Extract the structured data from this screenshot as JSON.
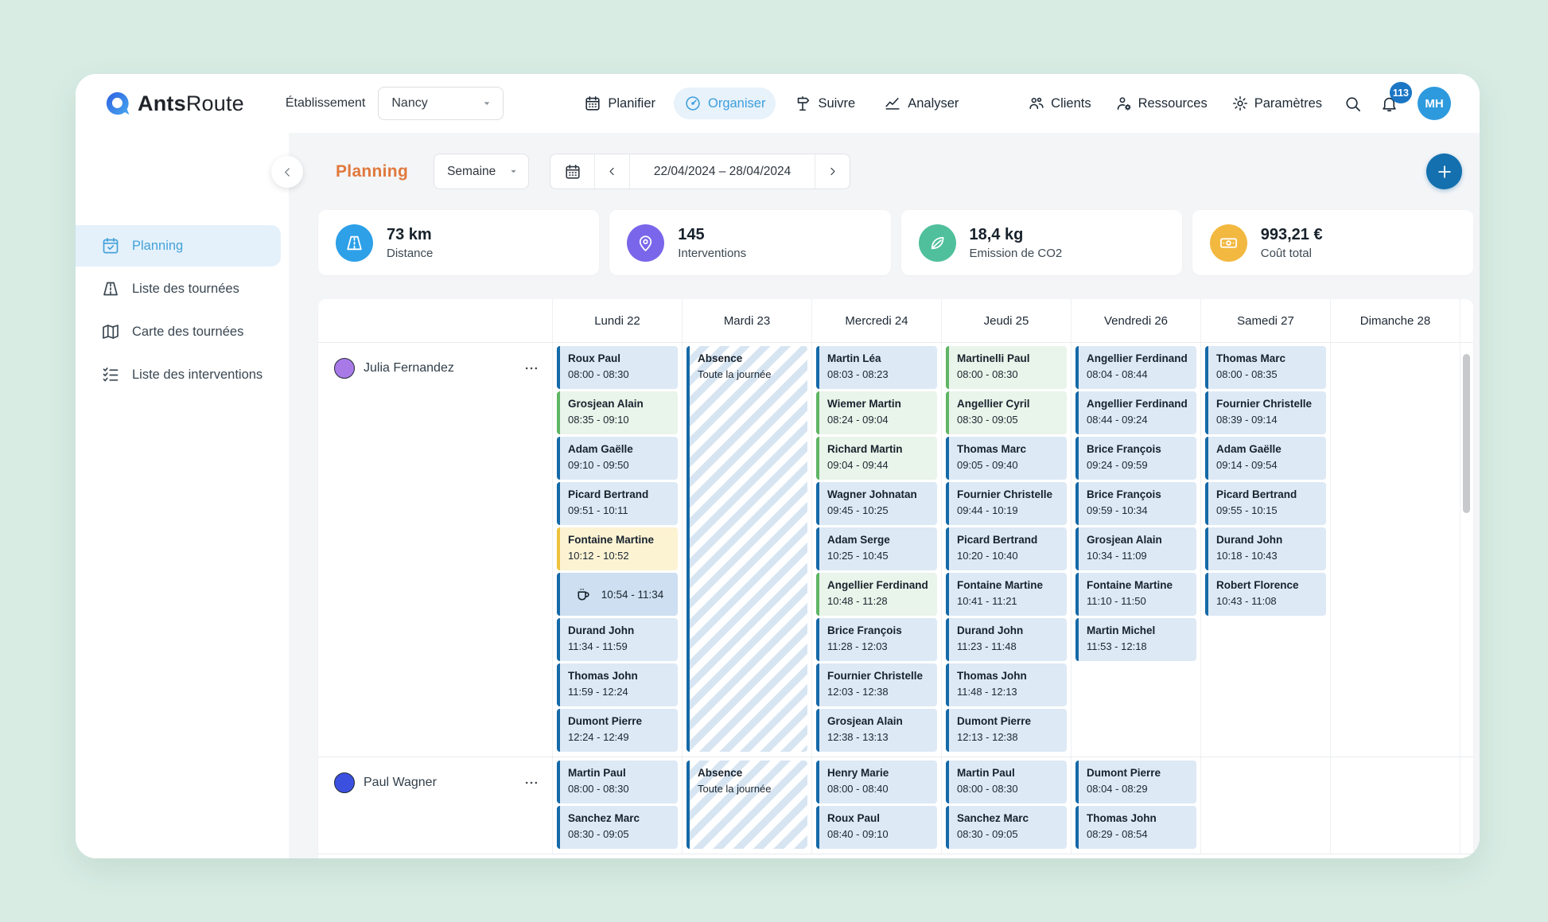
{
  "topbar": {
    "logo_bold": "Ants",
    "logo_regular": "Route",
    "establishment_label": "Établissement",
    "establishment_value": "Nancy",
    "nav": [
      {
        "id": "planifier",
        "label": "Planifier",
        "icon": "calendar-icon",
        "active": false
      },
      {
        "id": "organiser",
        "label": "Organiser",
        "icon": "gauge-icon",
        "active": true
      },
      {
        "id": "suivre",
        "label": "Suivre",
        "icon": "signpost-icon",
        "active": false
      },
      {
        "id": "analyser",
        "label": "Analyser",
        "icon": "chart-icon",
        "active": false
      }
    ],
    "utilities": [
      {
        "id": "clients",
        "label": "Clients",
        "icon": "clients-icon"
      },
      {
        "id": "ressources",
        "label": "Ressources",
        "icon": "person-gear-icon"
      },
      {
        "id": "parametres",
        "label": "Paramètres",
        "icon": "gear-icon"
      }
    ],
    "notifications_count": "113",
    "avatar_initials": "MH",
    "avatar_color": "#2e9ade"
  },
  "header": {
    "title": "Planning",
    "period_value": "Semaine",
    "date_range": "22/04/2024 – 28/04/2024"
  },
  "stats": [
    {
      "value": "73 km",
      "label": "Distance",
      "icon": "road-icon",
      "color": "#2da0e8"
    },
    {
      "value": "145",
      "label": "Interventions",
      "icon": "pin-icon",
      "color": "#7a66ea"
    },
    {
      "value": "18,4 kg",
      "label": "Emission de CO2",
      "icon": "leaf-icon",
      "color": "#4fc09b"
    },
    {
      "value": "993,21 €",
      "label": "Coût total",
      "icon": "banknote-icon",
      "color": "#f2b840"
    }
  ],
  "sidebar": {
    "items": [
      {
        "label": "Planning",
        "icon": "calendar-check-icon",
        "active": true
      },
      {
        "label": "Liste des tournées",
        "icon": "road-icon",
        "active": false
      },
      {
        "label": "Carte des tournées",
        "icon": "map-icon",
        "active": false
      },
      {
        "label": "Liste des interventions",
        "icon": "checklist-icon",
        "active": false
      }
    ]
  },
  "event_colors": {
    "blue_bg": "#dde9f5",
    "blue_border": "#1569a8",
    "green_bg": "#e9f4ea",
    "green_border": "#5eb564",
    "yellow_bg": "#fcf3d3",
    "yellow_border": "#eec23c",
    "break_bg": "#cddff0"
  },
  "calendar": {
    "days": [
      "Lundi 22",
      "Mardi 23",
      "Mercredi 24",
      "Jeudi 25",
      "Vendredi 26",
      "Samedi 27",
      "Dimanche 28"
    ],
    "resources": [
      {
        "name": "Julia Fernandez",
        "avatar_color": "#a87ae8",
        "days": [
          {
            "events": [
              {
                "name": "Roux Paul",
                "time": "08:00 - 08:30",
                "type": "blue"
              },
              {
                "name": "Grosjean Alain",
                "time": "08:35 - 09:10",
                "type": "green"
              },
              {
                "name": "Adam Gaëlle",
                "time": "09:10 - 09:50",
                "type": "blue"
              },
              {
                "name": "Picard Bertrand",
                "time": "09:51 - 10:11",
                "type": "blue"
              },
              {
                "name": "Fontaine Martine",
                "time": "10:12 - 10:52",
                "type": "yellow"
              },
              {
                "time": "10:54 - 11:34",
                "type": "break",
                "icon": "coffee-icon"
              },
              {
                "name": "Durand John",
                "time": "11:34 - 11:59",
                "type": "blue"
              },
              {
                "name": "Thomas John",
                "time": "11:59 - 12:24",
                "type": "blue"
              },
              {
                "name": "Dumont Pierre",
                "time": "12:24 - 12:49",
                "type": "blue"
              }
            ]
          },
          {
            "absence": {
              "title": "Absence",
              "subtitle": "Toute la journée"
            }
          },
          {
            "events": [
              {
                "name": "Martin Léa",
                "time": "08:03 - 08:23",
                "type": "blue"
              },
              {
                "name": "Wiemer Martin",
                "time": "08:24 - 09:04",
                "type": "green"
              },
              {
                "name": "Richard Martin",
                "time": "09:04 - 09:44",
                "type": "green"
              },
              {
                "name": "Wagner Johnatan",
                "time": "09:45 - 10:25",
                "type": "blue"
              },
              {
                "name": "Adam Serge",
                "time": "10:25 - 10:45",
                "type": "blue"
              },
              {
                "name": "Angellier Ferdinand",
                "time": "10:48 - 11:28",
                "type": "green"
              },
              {
                "name": "Brice François",
                "time": "11:28 - 12:03",
                "type": "blue"
              },
              {
                "name": "Fournier Christelle",
                "time": "12:03 - 12:38",
                "type": "blue"
              },
              {
                "name": "Grosjean Alain",
                "time": "12:38 - 13:13",
                "type": "blue"
              }
            ]
          },
          {
            "events": [
              {
                "name": "Martinelli Paul",
                "time": "08:00 - 08:30",
                "type": "green"
              },
              {
                "name": "Angellier Cyril",
                "time": "08:30 - 09:05",
                "type": "green"
              },
              {
                "name": "Thomas Marc",
                "time": "09:05 - 09:40",
                "type": "blue"
              },
              {
                "name": "Fournier Christelle",
                "time": "09:44 - 10:19",
                "type": "blue"
              },
              {
                "name": "Picard Bertrand",
                "time": "10:20 - 10:40",
                "type": "blue"
              },
              {
                "name": "Fontaine Martine",
                "time": "10:41 - 11:21",
                "type": "blue"
              },
              {
                "name": "Durand John",
                "time": "11:23 - 11:48",
                "type": "blue"
              },
              {
                "name": "Thomas John",
                "time": "11:48 - 12:13",
                "type": "blue"
              },
              {
                "name": "Dumont Pierre",
                "time": "12:13 - 12:38",
                "type": "blue"
              }
            ]
          },
          {
            "events": [
              {
                "name": "Angellier Ferdinand",
                "time": "08:04 - 08:44",
                "type": "blue"
              },
              {
                "name": "Angellier Ferdinand",
                "time": "08:44 - 09:24",
                "type": "blue"
              },
              {
                "name": "Brice François",
                "time": "09:24 - 09:59",
                "type": "blue"
              },
              {
                "name": "Brice François",
                "time": "09:59 - 10:34",
                "type": "blue"
              },
              {
                "name": "Grosjean Alain",
                "time": "10:34 - 11:09",
                "type": "blue"
              },
              {
                "name": "Fontaine Martine",
                "time": "11:10 - 11:50",
                "type": "blue"
              },
              {
                "name": "Martin Michel",
                "time": "11:53 - 12:18",
                "type": "blue"
              }
            ]
          },
          {
            "events": [
              {
                "name": "Thomas Marc",
                "time": "08:00 - 08:35",
                "type": "blue"
              },
              {
                "name": "Fournier Christelle",
                "time": "08:39 - 09:14",
                "type": "blue"
              },
              {
                "name": "Adam Gaëlle",
                "time": "09:14 - 09:54",
                "type": "blue"
              },
              {
                "name": "Picard Bertrand",
                "time": "09:55 - 10:15",
                "type": "blue"
              },
              {
                "name": "Durand John",
                "time": "10:18 - 10:43",
                "type": "blue"
              },
              {
                "name": "Robert Florence",
                "time": "10:43 - 11:08",
                "type": "blue"
              }
            ]
          },
          {
            "events": []
          }
        ]
      },
      {
        "name": "Paul Wagner",
        "avatar_color": "#3c50e0",
        "days": [
          {
            "events": [
              {
                "name": "Martin Paul",
                "time": "08:00 - 08:30",
                "type": "blue"
              },
              {
                "name": "Sanchez Marc",
                "time": "08:30 - 09:05",
                "type": "blue"
              }
            ]
          },
          {
            "absence": {
              "title": "Absence",
              "subtitle": "Toute la journée"
            }
          },
          {
            "events": [
              {
                "name": "Henry Marie",
                "time": "08:00 - 08:40",
                "type": "blue"
              },
              {
                "name": "Roux Paul",
                "time": "08:40 - 09:10",
                "type": "blue"
              }
            ]
          },
          {
            "events": [
              {
                "name": "Martin Paul",
                "time": "08:00 - 08:30",
                "type": "blue"
              },
              {
                "name": "Sanchez Marc",
                "time": "08:30 - 09:05",
                "type": "blue"
              }
            ]
          },
          {
            "events": [
              {
                "name": "Dumont Pierre",
                "time": "08:04 - 08:29",
                "type": "blue"
              },
              {
                "name": "Thomas John",
                "time": "08:29 - 08:54",
                "type": "blue"
              }
            ]
          },
          {
            "events": []
          },
          {
            "events": []
          }
        ]
      }
    ]
  }
}
